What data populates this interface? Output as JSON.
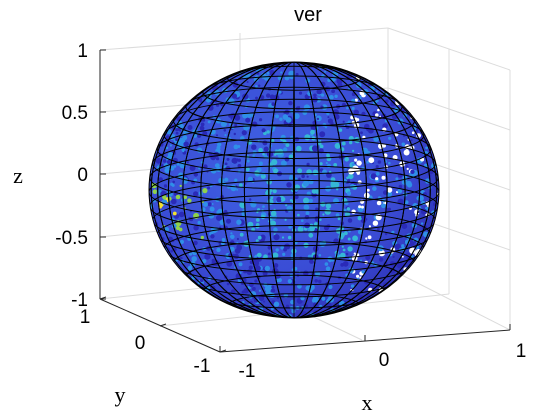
{
  "chart_data": {
    "type": "scatter3d-sphere",
    "title": "ver",
    "xlabel": "x",
    "ylabel": "y",
    "zlabel": "z",
    "xlim": [
      -1,
      1
    ],
    "ylim": [
      -1,
      1
    ],
    "zlim": [
      -1,
      1
    ],
    "x_ticks": [
      "-1",
      "0",
      "1"
    ],
    "y_ticks": [
      "-1",
      "0",
      "1"
    ],
    "z_ticks": [
      "-1",
      "-0.5",
      "0",
      "0.5",
      "1"
    ],
    "grid": true,
    "surface": "unit sphere points (radius 1) colored by value, with black wireframe mesh",
    "colors": {
      "base": "#3d4fd8",
      "dark": "#2a2ab8",
      "mid": "#2f8fe8",
      "cyan": "#35b7d6",
      "green": "#8ed24a",
      "yellow": "#f2e030",
      "mesh": "#000000"
    }
  }
}
